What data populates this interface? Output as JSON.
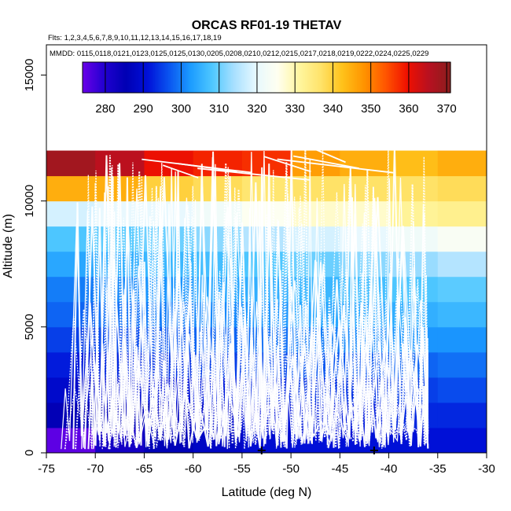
{
  "chart_data": {
    "type": "heatmap",
    "title": "ORCAS RF01-19 THETAV",
    "flights_note": "Flts: 1,2,3,4,5,6,7,8,9,10,11,12,13,14,15,16,17,18,19",
    "dates_note": "MMDD: 0115,0118,0121,0123,0125,0125,0130,0205,0208,0210,0212,0215,0217,0218,0219,0222,0224,0225,0229",
    "xlabel": "Latitude (deg N)",
    "ylabel": "Altitude (m)",
    "xlim": [
      -75,
      -30
    ],
    "ylim": [
      0,
      16200
    ],
    "x_ticks": [
      -75,
      -70,
      -65,
      -60,
      -55,
      -50,
      -45,
      -40,
      -35,
      -30
    ],
    "y_ticks": [
      0,
      5000,
      10000,
      15000
    ],
    "colorbar": {
      "range": [
        274,
        371
      ],
      "ticks": [
        280,
        290,
        300,
        310,
        320,
        330,
        340,
        350,
        360,
        370
      ],
      "palette": [
        "#6a00e8",
        "#2200d0",
        "#0000b4",
        "#0010d8",
        "#0a55f0",
        "#1c9cff",
        "#4fc8ff",
        "#a8e0ff",
        "#e6f8ff",
        "#fffff0",
        "#fff6a0",
        "#ffe36a",
        "#ffc21a",
        "#ff9400",
        "#ff5500",
        "#f01000",
        "#b81020",
        "#8a1e1e"
      ]
    },
    "cell_lat_edges": [
      -75,
      -70,
      -65,
      -60,
      -55,
      -50,
      -45,
      -40,
      -35,
      -30
    ],
    "cell_alt_edges": [
      0,
      1000,
      2000,
      3000,
      4000,
      5000,
      6000,
      7000,
      8000,
      9000,
      10000,
      11000,
      12000
    ],
    "theta_grid": [
      [
        275,
        282,
        286,
        288,
        290,
        291,
        291,
        291,
        291,
        null
      ],
      [
        285,
        286,
        287,
        289,
        291,
        292,
        292,
        293,
        293,
        null
      ],
      [
        289,
        290,
        291,
        292,
        293,
        294,
        294,
        295,
        296,
        null
      ],
      [
        292,
        293,
        294,
        295,
        296,
        297,
        297,
        298,
        299,
        null
      ],
      [
        295,
        296,
        297,
        298,
        299,
        300,
        301,
        302,
        302,
        null
      ],
      [
        298,
        299,
        300,
        301,
        302,
        304,
        304,
        305,
        306,
        null
      ],
      [
        300,
        301,
        302,
        304,
        305,
        306,
        307,
        308,
        309,
        null
      ],
      [
        304,
        305,
        306,
        307,
        308,
        310,
        312,
        313,
        315,
        316
      ],
      [
        308,
        309,
        310,
        312,
        315,
        318,
        320,
        322,
        324,
        318
      ],
      [
        318,
        320,
        320,
        322,
        325,
        328,
        328,
        332,
        333,
        324
      ],
      [
        345,
        345,
        340,
        338,
        336,
        337,
        337,
        337,
        338,
        347
      ],
      [
        368,
        365,
        360,
        358,
        357,
        347,
        345,
        343,
        345,
        347
      ]
    ],
    "marker_latitudes": [
      -53,
      -41.5
    ],
    "legend": "none",
    "grid": false
  }
}
